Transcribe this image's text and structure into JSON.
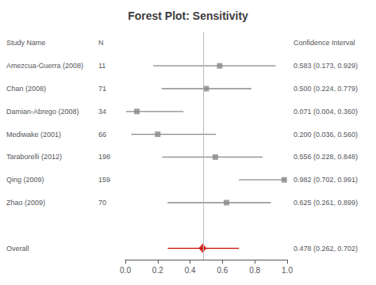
{
  "chart_data": {
    "type": "forest",
    "title": "Forest Plot: Sensitivity",
    "columns": [
      "Study Name",
      "N",
      "Confidence Interval"
    ],
    "categories": [
      "Amezcua-Guerra (2008)",
      "Chan (2008)",
      "Damian-Abrego (2008)",
      "Mediwake (2001)",
      "Taraborelli (2012)",
      "Qing (2009)",
      "Zhao (2009)"
    ],
    "n": [
      11,
      71,
      34,
      66,
      198,
      159,
      70
    ],
    "values": [
      0.583,
      0.5,
      0.071,
      0.2,
      0.556,
      0.982,
      0.625
    ],
    "lo": [
      0.173,
      0.224,
      0.004,
      0.036,
      0.228,
      0.702,
      0.261
    ],
    "hi": [
      0.929,
      0.779,
      0.36,
      0.56,
      0.848,
      0.991,
      0.899
    ],
    "value_labels": [
      "0.583 (0.173, 0.929)",
      "0.500 (0.224, 0.779)",
      "0.071 (0.004, 0.360)",
      "0.200 (0.036, 0.560)",
      "0.556 (0.228, 0.848)",
      "0.982 (0.702, 0.991)",
      "0.625 (0.261, 0.899)"
    ],
    "color": "#888888",
    "overall": {
      "name": "Overall",
      "value": 0.478,
      "lo": 0.262,
      "hi": 0.702,
      "value_label": "0.478 (0.262, 0.702)",
      "color": "#cc0000"
    },
    "reference_line": 0.478,
    "xlim": [
      0.0,
      1.0
    ],
    "xticks": [
      {
        "value": 0.0,
        "label": "0.0"
      },
      0.2,
      0.4,
      0.6,
      0.8,
      {
        "value": 1.0,
        "label": "1.0"
      }
    ],
    "grid": false
  }
}
